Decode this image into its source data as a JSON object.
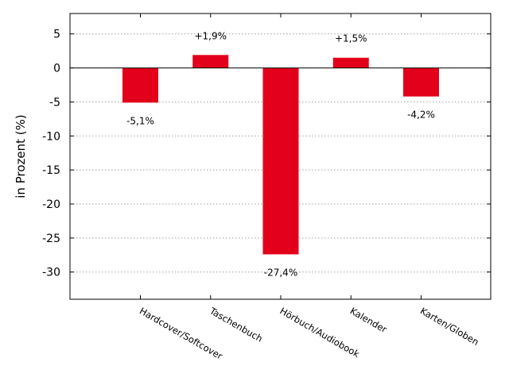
{
  "chart_data": {
    "type": "bar",
    "categories": [
      "Hardcover/Softcover",
      "Taschenbuch",
      "Hörbuch/Audiobook",
      "Kalender",
      "Karten/Globen"
    ],
    "values": [
      -5.1,
      1.9,
      -27.4,
      1.5,
      -4.2
    ],
    "data_labels": [
      "-5,1%",
      "+1,9%",
      "-27,4%",
      "+1,5%",
      "-4,2%"
    ],
    "ylabel": "in Prozent (%)",
    "xlabel": "",
    "title": "",
    "ylim": [
      -34,
      8
    ],
    "yticks": [
      5,
      0,
      -5,
      -10,
      -15,
      -20,
      -25,
      -30
    ],
    "ytick_labels": [
      "5",
      "0",
      "-5",
      "-10",
      "-15",
      "-20",
      "-25",
      "-30"
    ],
    "grid": "horizontal dotted",
    "bar_color": "#e2001a",
    "category_label_rotation": "rotated ~30° clockwise"
  }
}
